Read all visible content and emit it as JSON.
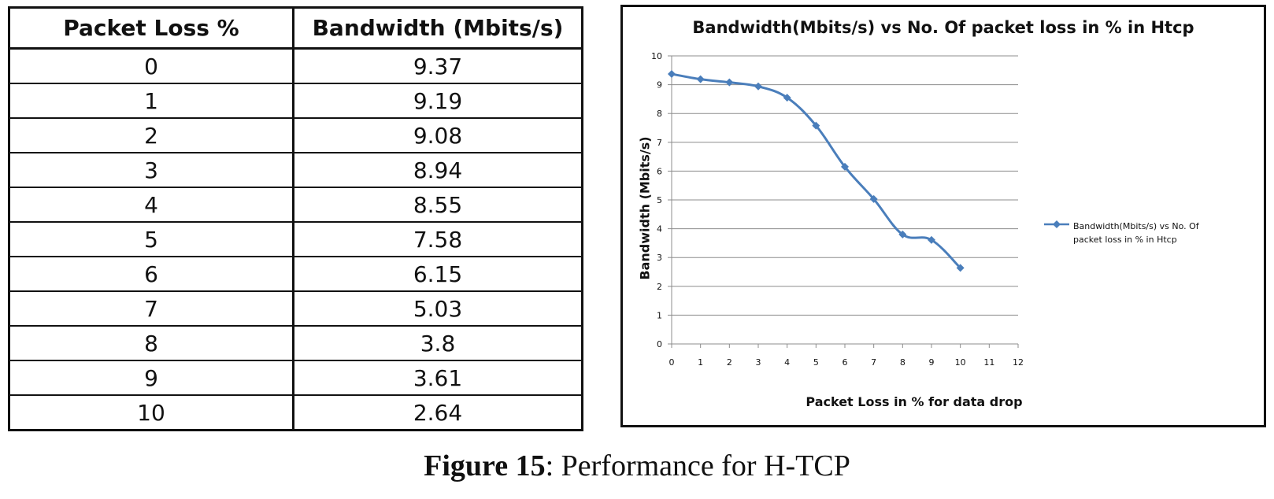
{
  "table": {
    "headers": [
      "Packet Loss %",
      "Bandwidth (Mbits/s)"
    ],
    "rows": [
      [
        "0",
        "9.37"
      ],
      [
        "1",
        "9.19"
      ],
      [
        "2",
        "9.08"
      ],
      [
        "3",
        "8.94"
      ],
      [
        "4",
        "8.55"
      ],
      [
        "5",
        "7.58"
      ],
      [
        "6",
        "6.15"
      ],
      [
        "7",
        "5.03"
      ],
      [
        "8",
        "3.8"
      ],
      [
        "9",
        "3.61"
      ],
      [
        "10",
        "2.64"
      ]
    ]
  },
  "chart_data": {
    "type": "line",
    "title": "Bandwidth(Mbits/s) vs No. Of packet loss in % in Htcp",
    "xlabel": "Packet Loss in % for data drop",
    "ylabel": "Bandwidth (Mbits/s)",
    "xlim": [
      0,
      12
    ],
    "ylim": [
      0,
      10
    ],
    "x_ticks": [
      "0",
      "1",
      "2",
      "3",
      "4",
      "5",
      "6",
      "7",
      "8",
      "9",
      "10",
      "11",
      "12"
    ],
    "y_ticks": [
      "0",
      "1",
      "2",
      "3",
      "4",
      "5",
      "6",
      "7",
      "8",
      "9",
      "10"
    ],
    "grid": "horizontal",
    "legend_position": "right",
    "series": [
      {
        "name": "Bandwidth(Mbits/s) vs No. Of packet loss in % in Htcp",
        "color": "#4a7ebb",
        "marker": "diamond",
        "x": [
          0,
          1,
          2,
          3,
          4,
          5,
          6,
          7,
          8,
          9,
          10
        ],
        "values": [
          9.37,
          9.19,
          9.08,
          8.94,
          8.55,
          7.58,
          6.15,
          5.03,
          3.8,
          3.61,
          2.64
        ]
      }
    ]
  },
  "caption": {
    "label": "Figure 15",
    "text": ": Performance  for H-TCP"
  }
}
